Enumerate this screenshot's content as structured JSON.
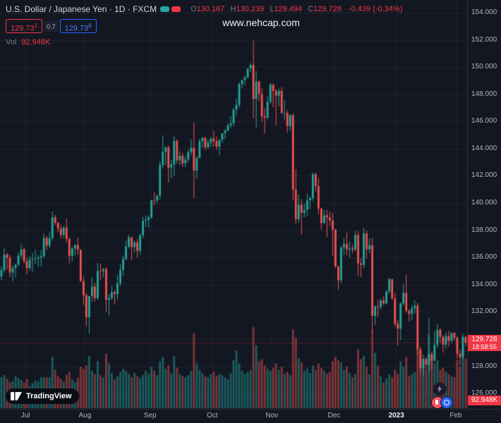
{
  "header": {
    "symbol_title": "U.S. Dollar / Japanese Yen · 1D · FXCM",
    "ohlc": {
      "o_label": "O",
      "o": "130.167",
      "h_label": "H",
      "h": "130.239",
      "l_label": "L",
      "l": "129.494",
      "c_label": "C",
      "c": "129.728",
      "change": "-0.439 (-0.34%)"
    },
    "sell_price": "129.73",
    "sell_sup": "1",
    "spread": "0.7",
    "buy_price": "129.73",
    "buy_sup": "8",
    "vol_label": "Vol",
    "vol_value": "92.948K"
  },
  "watermark": "www.nehcap.com",
  "logo": {
    "text": "TradingView"
  },
  "price_axis": {
    "labels": [
      "154.000",
      "152.000",
      "150.000",
      "148.000",
      "146.000",
      "144.000",
      "142.000",
      "140.000",
      "138.000",
      "136.000",
      "134.000",
      "132.000",
      "130.000",
      "128.000",
      "126.000"
    ],
    "current_price": "129.728",
    "countdown": "18:58:55",
    "volume_badge": "92.948K"
  },
  "time_axis": {
    "labels": [
      {
        "label": "Jul",
        "index": 9
      },
      {
        "label": "Aug",
        "index": 30
      },
      {
        "label": "Sep",
        "index": 53
      },
      {
        "label": "Oct",
        "index": 75
      },
      {
        "label": "Nov",
        "index": 96
      },
      {
        "label": "Dec",
        "index": 118
      },
      {
        "label": "2023",
        "index": 140,
        "year": true
      },
      {
        "label": "Feb",
        "index": 161
      }
    ]
  },
  "colors": {
    "background": "#131722",
    "grid": "rgba(42,46,57,0.55)",
    "up": "#26a69a",
    "down": "#ef5350",
    "accent_red": "#f23645",
    "accent_blue": "#2962ff",
    "text": "#d1d4dc",
    "muted": "#787b86",
    "axis_text": "#b2b5be"
  },
  "chart_data": {
    "type": "candlestick",
    "symbol": "USD/JPY",
    "interval": "1D",
    "exchange": "FXCM",
    "ylim": [
      124.87,
      154.93
    ],
    "current_price": 129.728,
    "candles": [
      [
        134.6,
        135.35,
        134.32,
        135.08
      ],
      [
        135.08,
        136.7,
        134.9,
        136.22
      ],
      [
        136.22,
        136.35,
        135.12,
        135.98
      ],
      [
        135.98,
        136.2,
        134.55,
        134.9
      ],
      [
        134.9,
        135.4,
        134.26,
        135.23
      ],
      [
        135.23,
        135.52,
        134.54,
        135.48
      ],
      [
        135.48,
        136.35,
        135.35,
        136.15
      ],
      [
        136.15,
        137.0,
        135.95,
        136.6
      ],
      [
        136.6,
        136.73,
        135.55,
        135.72
      ],
      [
        135.72,
        136.0,
        134.75,
        135.22
      ],
      [
        135.22,
        136.1,
        135.05,
        135.84
      ],
      [
        135.84,
        136.35,
        134.95,
        135.88
      ],
      [
        135.88,
        136.56,
        135.53,
        135.93
      ],
      [
        135.93,
        136.18,
        135.33,
        136.0
      ],
      [
        136.0,
        136.55,
        135.32,
        136.1
      ],
      [
        136.1,
        137.75,
        135.98,
        137.44
      ],
      [
        137.44,
        137.58,
        136.55,
        136.87
      ],
      [
        136.87,
        137.87,
        136.7,
        137.43
      ],
      [
        137.43,
        139.38,
        137.25,
        138.95
      ],
      [
        138.95,
        139.13,
        138.38,
        138.57
      ],
      [
        138.57,
        138.58,
        137.88,
        138.13
      ],
      [
        138.13,
        138.38,
        137.38,
        137.66
      ],
      [
        137.66,
        138.32,
        137.43,
        138.2
      ],
      [
        138.2,
        138.88,
        137.07,
        137.36
      ],
      [
        137.36,
        137.48,
        135.57,
        136.12
      ],
      [
        136.12,
        136.74,
        135.74,
        136.66
      ],
      [
        136.66,
        137.0,
        136.15,
        136.91
      ],
      [
        136.91,
        137.45,
        136.2,
        136.58
      ],
      [
        136.58,
        136.59,
        134.2,
        134.27
      ],
      [
        134.27,
        134.59,
        132.5,
        133.22
      ],
      [
        133.22,
        133.4,
        130.95,
        131.61
      ],
      [
        131.61,
        133.18,
        130.4,
        133.17
      ],
      [
        133.17,
        134.55,
        132.76,
        133.86
      ],
      [
        133.86,
        134.15,
        132.76,
        133.0
      ],
      [
        133.0,
        135.58,
        132.9,
        135.01
      ],
      [
        135.01,
        135.55,
        134.34,
        134.99
      ],
      [
        134.99,
        135.2,
        134.55,
        135.16
      ],
      [
        135.16,
        135.3,
        132.04,
        132.89
      ],
      [
        132.89,
        133.3,
        131.73,
        133.02
      ],
      [
        133.02,
        133.9,
        132.86,
        133.45
      ],
      [
        133.45,
        133.6,
        132.55,
        133.31
      ],
      [
        133.31,
        134.7,
        132.9,
        134.1
      ],
      [
        134.1,
        135.5,
        133.9,
        135.1
      ],
      [
        135.1,
        136.16,
        134.65,
        135.88
      ],
      [
        135.88,
        137.23,
        135.8,
        136.81
      ],
      [
        136.81,
        137.66,
        136.67,
        137.48
      ],
      [
        137.48,
        137.53,
        135.81,
        136.77
      ],
      [
        136.77,
        137.25,
        136.34,
        137.12
      ],
      [
        137.12,
        137.35,
        135.99,
        136.49
      ],
      [
        136.49,
        137.75,
        136.23,
        137.64
      ],
      [
        137.64,
        139.0,
        137.42,
        138.7
      ],
      [
        138.7,
        139.08,
        138.25,
        138.77
      ],
      [
        138.77,
        139.09,
        138.2,
        138.96
      ],
      [
        138.96,
        140.23,
        138.84,
        140.21
      ],
      [
        140.21,
        140.8,
        139.83,
        140.2
      ],
      [
        140.2,
        140.6,
        139.98,
        140.56
      ],
      [
        140.56,
        143.07,
        140.25,
        142.8
      ],
      [
        142.8,
        144.99,
        142.55,
        143.75
      ],
      [
        143.75,
        144.15,
        142.78,
        144.1
      ],
      [
        144.1,
        144.25,
        141.5,
        142.6
      ],
      [
        142.6,
        143.2,
        141.84,
        142.83
      ],
      [
        142.83,
        144.96,
        142.0,
        144.57
      ],
      [
        144.57,
        144.7,
        142.9,
        143.15
      ],
      [
        143.15,
        143.8,
        142.8,
        143.47
      ],
      [
        143.47,
        143.7,
        142.65,
        142.92
      ],
      [
        142.92,
        143.45,
        142.62,
        143.2
      ],
      [
        143.2,
        143.92,
        143.0,
        143.75
      ],
      [
        143.75,
        144.7,
        143.5,
        144.06
      ],
      [
        144.06,
        145.9,
        140.36,
        142.39
      ],
      [
        142.39,
        143.46,
        141.77,
        143.31
      ],
      [
        143.31,
        144.75,
        143.3,
        144.55
      ],
      [
        144.55,
        144.85,
        144.05,
        144.81
      ],
      [
        144.81,
        144.85,
        143.9,
        144.1
      ],
      [
        144.1,
        144.7,
        144.0,
        144.45
      ],
      [
        144.45,
        144.88,
        144.15,
        144.74
      ],
      [
        144.74,
        145.3,
        144.16,
        144.55
      ],
      [
        144.55,
        144.9,
        143.9,
        144.15
      ],
      [
        144.15,
        144.7,
        143.52,
        144.65
      ],
      [
        144.65,
        145.15,
        144.42,
        145.13
      ],
      [
        145.13,
        145.43,
        144.7,
        145.32
      ],
      [
        145.32,
        145.9,
        145.25,
        145.72
      ],
      [
        145.72,
        146.38,
        145.5,
        145.86
      ],
      [
        145.86,
        146.98,
        145.65,
        146.88
      ],
      [
        146.88,
        147.67,
        146.44,
        147.22
      ],
      [
        147.22,
        148.86,
        147.04,
        148.75
      ],
      [
        148.75,
        149.08,
        148.44,
        149.05
      ],
      [
        149.05,
        149.38,
        148.63,
        149.26
      ],
      [
        149.26,
        149.91,
        149.14,
        149.89
      ],
      [
        149.89,
        150.29,
        149.62,
        150.15
      ],
      [
        150.15,
        151.94,
        146.2,
        147.65
      ],
      [
        147.65,
        149.7,
        145.56,
        148.93
      ],
      [
        148.93,
        149.03,
        147.48,
        148.03
      ],
      [
        148.03,
        148.45,
        145.98,
        146.38
      ],
      [
        146.38,
        146.98,
        145.1,
        146.28
      ],
      [
        146.28,
        147.86,
        146.15,
        147.45
      ],
      [
        147.45,
        148.83,
        147.3,
        148.7
      ],
      [
        148.7,
        148.75,
        147.05,
        148.25
      ],
      [
        148.25,
        148.4,
        145.67,
        147.9
      ],
      [
        147.9,
        148.44,
        147.1,
        148.25
      ],
      [
        148.25,
        148.53,
        146.55,
        146.62
      ],
      [
        146.62,
        147.56,
        146.12,
        146.62
      ],
      [
        146.62,
        146.85,
        145.17,
        145.67
      ],
      [
        145.67,
        146.53,
        145.3,
        146.45
      ],
      [
        146.45,
        146.59,
        140.2,
        140.98
      ],
      [
        140.98,
        142.48,
        138.46,
        138.81
      ],
      [
        138.81,
        140.62,
        138.55,
        139.89
      ],
      [
        139.89,
        140.3,
        137.68,
        139.29
      ],
      [
        139.29,
        139.95,
        138.96,
        139.5
      ],
      [
        139.5,
        140.7,
        139.05,
        140.2
      ],
      [
        140.2,
        140.49,
        139.56,
        140.37
      ],
      [
        140.37,
        142.25,
        140.15,
        142.13
      ],
      [
        142.13,
        142.25,
        140.85,
        141.24
      ],
      [
        141.24,
        141.85,
        139.18,
        139.6
      ],
      [
        139.6,
        139.65,
        138.05,
        138.53
      ],
      [
        138.53,
        139.49,
        138.45,
        139.1
      ],
      [
        139.1,
        139.5,
        137.5,
        138.95
      ],
      [
        138.95,
        139.38,
        138.32,
        138.71
      ],
      [
        138.71,
        139.28,
        136.12,
        138.05
      ],
      [
        138.05,
        138.1,
        135.25,
        135.33
      ],
      [
        135.33,
        135.4,
        133.62,
        134.31
      ],
      [
        134.31,
        136.83,
        134.12,
        136.73
      ],
      [
        136.73,
        137.43,
        136.18,
        137.0
      ],
      [
        137.0,
        137.85,
        136.15,
        136.59
      ],
      [
        136.59,
        137.2,
        136.0,
        136.66
      ],
      [
        136.66,
        136.95,
        136.32,
        136.57
      ],
      [
        136.57,
        137.95,
        136.46,
        137.66
      ],
      [
        137.66,
        137.95,
        134.65,
        135.57
      ],
      [
        135.57,
        135.97,
        134.55,
        135.45
      ],
      [
        135.45,
        138.18,
        135.21,
        137.77
      ],
      [
        137.77,
        137.97,
        135.93,
        136.6
      ],
      [
        136.6,
        137.41,
        136.32,
        136.91
      ],
      [
        136.91,
        137.48,
        130.58,
        131.71
      ],
      [
        131.71,
        132.48,
        131.05,
        132.4
      ],
      [
        132.4,
        132.88,
        131.61,
        132.36
      ],
      [
        132.36,
        133.0,
        132.15,
        132.85
      ],
      [
        132.85,
        133.2,
        132.5,
        132.62
      ],
      [
        132.62,
        133.6,
        132.55,
        133.5
      ],
      [
        133.5,
        134.5,
        133.35,
        134.4
      ],
      [
        134.4,
        134.45,
        132.88,
        133.0
      ],
      [
        133.0,
        133.4,
        130.92,
        131.12
      ],
      [
        131.12,
        131.4,
        129.52,
        130.77
      ],
      [
        130.77,
        132.7,
        129.92,
        132.62
      ],
      [
        132.62,
        134.05,
        132.45,
        133.4
      ],
      [
        133.4,
        134.77,
        131.98,
        132.08
      ],
      [
        132.08,
        132.2,
        131.3,
        131.86
      ],
      [
        131.86,
        132.5,
        131.38,
        132.26
      ],
      [
        132.26,
        132.87,
        131.85,
        132.46
      ],
      [
        132.46,
        132.7,
        128.86,
        129.25
      ],
      [
        129.25,
        129.45,
        127.46,
        127.86
      ],
      [
        127.86,
        128.87,
        127.22,
        128.55
      ],
      [
        128.55,
        128.66,
        127.75,
        128.12
      ],
      [
        128.12,
        131.58,
        127.57,
        128.9
      ],
      [
        128.9,
        129.1,
        127.78,
        128.43
      ],
      [
        128.43,
        130.6,
        128.35,
        129.58
      ],
      [
        129.58,
        131.1,
        129.35,
        130.67
      ],
      [
        130.67,
        130.8,
        129.75,
        130.17
      ],
      [
        130.17,
        130.28,
        129.0,
        129.6
      ],
      [
        129.6,
        130.49,
        129.3,
        130.22
      ],
      [
        130.22,
        130.6,
        129.45,
        129.88
      ],
      [
        129.88,
        130.5,
        129.7,
        130.44
      ],
      [
        130.44,
        130.52,
        129.91,
        130.1
      ],
      [
        130.1,
        130.2,
        128.56,
        128.92
      ],
      [
        128.92,
        129.2,
        128.08,
        128.68
      ],
      [
        128.68,
        130.4,
        128.5,
        130.17
      ],
      [
        130.17,
        130.24,
        129.49,
        129.73
      ]
    ],
    "volumes": [
      58,
      62,
      55,
      49,
      51,
      60,
      57,
      53,
      48,
      55,
      42,
      47,
      52,
      50,
      58,
      58,
      58,
      58,
      96,
      72,
      60,
      55,
      50,
      62,
      68,
      54,
      49,
      57,
      78,
      74,
      80,
      98,
      70,
      64,
      88,
      62,
      58,
      102,
      84,
      66,
      54,
      60,
      68,
      74,
      70,
      64,
      58,
      66,
      60,
      56,
      62,
      70,
      64,
      78,
      70,
      62,
      88,
      96,
      74,
      80,
      66,
      98,
      76,
      64,
      60,
      58,
      62,
      70,
      140,
      84,
      72,
      66,
      60,
      58,
      64,
      68,
      60,
      64,
      62,
      58,
      54,
      66,
      90,
      108,
      84,
      70,
      64,
      68,
      72,
      152,
      118,
      88,
      92,
      80,
      74,
      70,
      76,
      84,
      72,
      78,
      64,
      68,
      62,
      148,
      132,
      94,
      86,
      70,
      74,
      66,
      80,
      72,
      84,
      76,
      70,
      64,
      68,
      88,
      96,
      90,
      86,
      72,
      78,
      66,
      58,
      64,
      110,
      92,
      98,
      78,
      64,
      146,
      104,
      80,
      60,
      48,
      56,
      64,
      58,
      72,
      64,
      88,
      78,
      96,
      60,
      64,
      68,
      124,
      108,
      86,
      72,
      138,
      92,
      84,
      90,
      72,
      76,
      68,
      64,
      60,
      58,
      90,
      78,
      112,
      92.948
    ]
  }
}
